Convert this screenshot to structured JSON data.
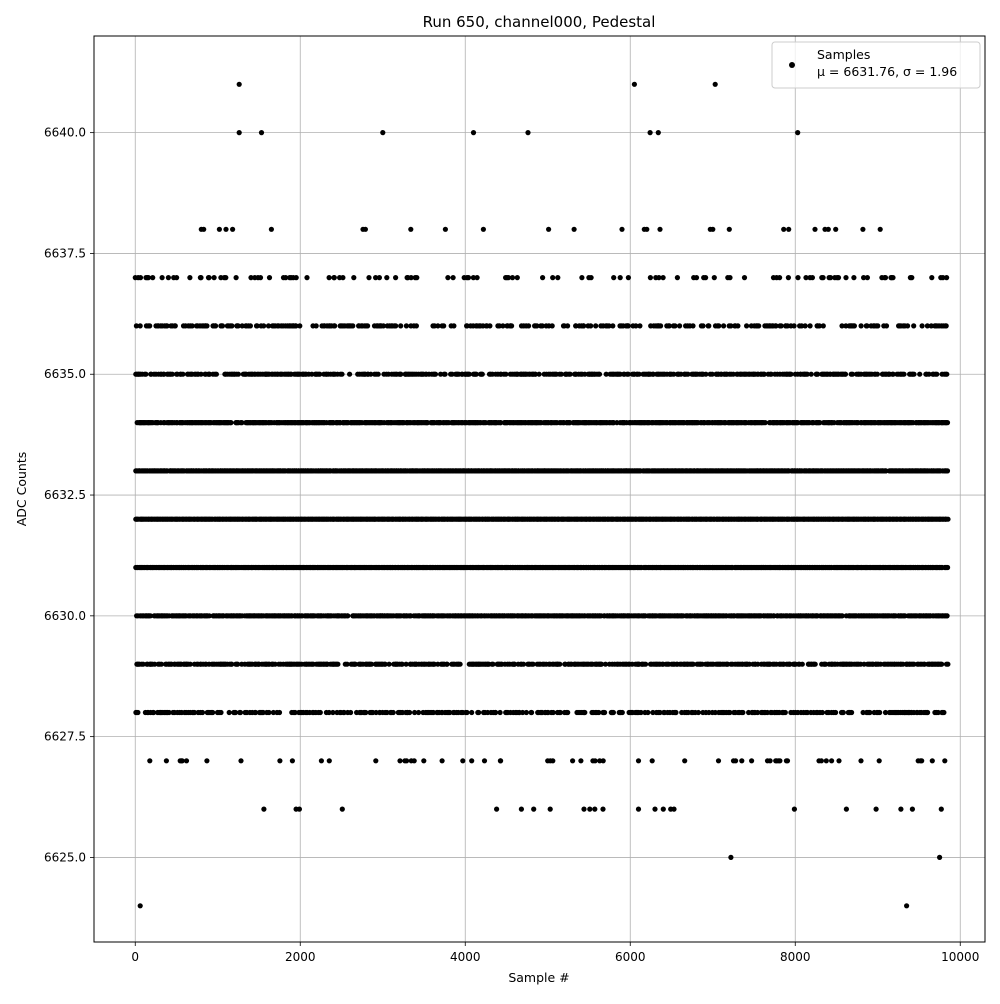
{
  "chart_data": {
    "type": "scatter",
    "title": "Run 650, channel000, Pedestal",
    "xlabel": "Sample #",
    "ylabel": "ADC Counts",
    "xlim": [
      -500,
      10300
    ],
    "ylim": [
      6623.25,
      6642.0
    ],
    "x_ticks": [
      0,
      2000,
      4000,
      6000,
      8000,
      10000
    ],
    "x_tick_labels": [
      "0",
      "2000",
      "4000",
      "6000",
      "8000",
      "10000"
    ],
    "y_ticks": [
      6625.0,
      6627.5,
      6630.0,
      6632.5,
      6635.0,
      6637.5,
      6640.0
    ],
    "y_tick_labels": [
      "6625.0",
      "6627.5",
      "6630.0",
      "6632.5",
      "6635.0",
      "6637.5",
      "6640.0"
    ],
    "grid": true,
    "legend_position": "top-right",
    "series": [
      {
        "name": "Samples",
        "color": "#000000",
        "marker": "circle",
        "points": [
          [
            1260,
            6641
          ],
          [
            6050,
            6641
          ],
          [
            7030,
            6641
          ],
          [
            1260,
            6640
          ],
          [
            1530,
            6640
          ],
          [
            3000,
            6640
          ],
          [
            4100,
            6640
          ],
          [
            4760,
            6640
          ],
          [
            6240,
            6640
          ],
          [
            6340,
            6640
          ],
          [
            8030,
            6640
          ],
          [
            800,
            6638
          ],
          [
            830,
            6638
          ],
          [
            1020,
            6638
          ],
          [
            1100,
            6638
          ],
          [
            1180,
            6638
          ],
          [
            1650,
            6638
          ],
          [
            2760,
            6638
          ],
          [
            2790,
            6638
          ],
          [
            3340,
            6638
          ],
          [
            3760,
            6638
          ],
          [
            4220,
            6638
          ],
          [
            5010,
            6638
          ],
          [
            5320,
            6638
          ],
          [
            5900,
            6638
          ],
          [
            6170,
            6638
          ],
          [
            6200,
            6638
          ],
          [
            6360,
            6638
          ],
          [
            6970,
            6638
          ],
          [
            7000,
            6638
          ],
          [
            7200,
            6638
          ],
          [
            7860,
            6638
          ],
          [
            7920,
            6638
          ],
          [
            8240,
            6638
          ],
          [
            8360,
            6638
          ],
          [
            8400,
            6638
          ],
          [
            8490,
            6638
          ],
          [
            8820,
            6638
          ],
          [
            9030,
            6638
          ],
          [
            60,
            6624.0
          ],
          [
            9350,
            6624
          ],
          [
            7220,
            6625
          ],
          [
            9750,
            6625
          ],
          [
            1560,
            6626
          ],
          [
            1950,
            6626
          ],
          [
            1990,
            6626
          ],
          [
            2510,
            6626
          ],
          [
            4380,
            6626
          ],
          [
            4680,
            6626
          ],
          [
            4830,
            6626
          ],
          [
            5030,
            6626
          ],
          [
            5440,
            6626
          ],
          [
            5510,
            6626
          ],
          [
            5570,
            6626
          ],
          [
            5670,
            6626
          ],
          [
            6100,
            6626
          ],
          [
            6300,
            6626
          ],
          [
            6400,
            6626
          ],
          [
            6490,
            6626
          ],
          [
            6530,
            6626
          ],
          [
            7990,
            6626
          ],
          [
            8620,
            6626
          ],
          [
            8980,
            6626
          ],
          [
            9280,
            6626
          ],
          [
            9420,
            6626
          ],
          [
            9770,
            6626
          ]
        ],
        "row_values": [
          6637,
          6636,
          6635,
          6634,
          6633,
          6632,
          6631,
          6630,
          6629,
          6628,
          6627
        ],
        "row_densities": [
          0.12,
          0.35,
          0.55,
          0.8,
          0.95,
          1.0,
          0.98,
          0.85,
          0.6,
          0.4,
          0.08
        ],
        "x_range": [
          0,
          9850
        ],
        "num_samples": 9850
      }
    ],
    "legend": {
      "label": "Samples",
      "stats": "μ = 6631.76, σ = 1.96"
    }
  }
}
